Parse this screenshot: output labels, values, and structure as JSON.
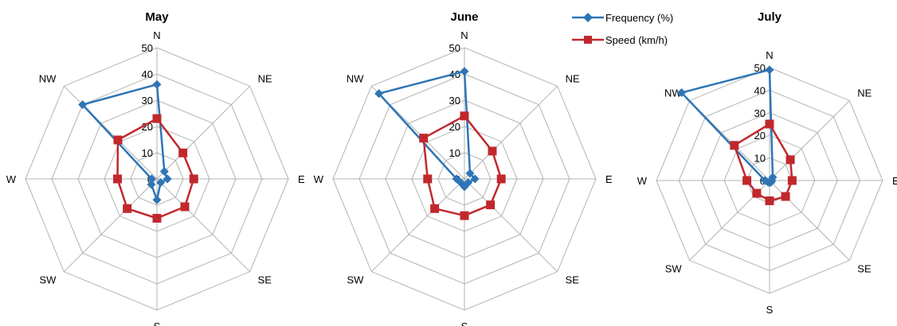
{
  "chart_data": [
    {
      "type": "radar",
      "title": "May",
      "directions": [
        "N",
        "NE",
        "E",
        "SE",
        "S",
        "SW",
        "W",
        "NW"
      ],
      "rlim": [
        0,
        50
      ],
      "ticks": [
        0,
        10,
        20,
        30,
        40,
        50
      ],
      "series": [
        {
          "name": "Frequency (%)",
          "values": [
            36,
            4,
            4,
            2,
            8,
            3,
            2,
            40
          ]
        },
        {
          "name": "Speed (km/h)",
          "values": [
            23,
            14,
            14,
            15,
            15,
            16,
            15,
            21
          ]
        }
      ]
    },
    {
      "type": "radar",
      "title": "June",
      "directions": [
        "N",
        "NE",
        "E",
        "SE",
        "S",
        "SW",
        "W",
        "NW"
      ],
      "rlim": [
        0,
        50
      ],
      "ticks": [
        0,
        10,
        20,
        30,
        40,
        50
      ],
      "series": [
        {
          "name": "Frequency (%)",
          "values": [
            41,
            3,
            4,
            2,
            3,
            2,
            3,
            46
          ]
        },
        {
          "name": "Speed (km/h)",
          "values": [
            24,
            15,
            14,
            14,
            14,
            16,
            14,
            22
          ]
        }
      ]
    },
    {
      "type": "radar",
      "title": "July",
      "directions": [
        "N",
        "NE",
        "E",
        "SE",
        "S",
        "SW",
        "W",
        "NW"
      ],
      "rlim": [
        0,
        50
      ],
      "ticks": [
        0,
        10,
        20,
        30,
        40,
        50
      ],
      "series": [
        {
          "name": "Frequency (%)",
          "values": [
            49,
            2,
            1,
            1,
            1,
            1,
            2,
            55
          ]
        },
        {
          "name": "Speed (km/h)",
          "values": [
            25,
            13,
            10,
            10,
            9,
            8,
            10,
            22
          ]
        }
      ]
    }
  ],
  "legend": {
    "placement": "top-center",
    "items": [
      {
        "label": "Frequency (%)",
        "color": "#2E75B6",
        "marker": "diamond"
      },
      {
        "label": "Speed (km/h)",
        "color": "#C0282D",
        "marker": "square"
      }
    ]
  },
  "colors": {
    "frequency": "#2E75B6",
    "speed": "#C0282D",
    "grid": "#b3b3b3"
  }
}
